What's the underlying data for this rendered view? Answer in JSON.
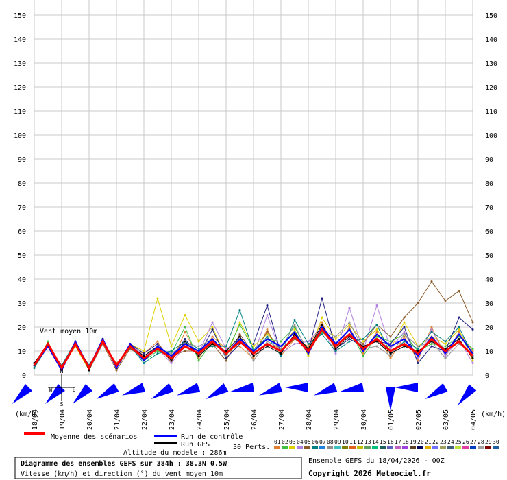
{
  "chart_data": {
    "type": "line",
    "label": "Vent moyen 10m",
    "unit_left": "(km/h)",
    "unit_right": "(km/h)",
    "ylim": [
      0,
      150
    ],
    "yticks": [
      0,
      10,
      20,
      30,
      40,
      50,
      60,
      70,
      80,
      90,
      100,
      110,
      120,
      130,
      140,
      150
    ],
    "xlim": [
      0,
      384
    ],
    "x": [
      0,
      12,
      24,
      36,
      48,
      60,
      72,
      84,
      96,
      108,
      120,
      132,
      144,
      156,
      168,
      180,
      192,
      204,
      216,
      228,
      240,
      252,
      264,
      276,
      288,
      300,
      312,
      324,
      336,
      348,
      360,
      372,
      384
    ],
    "dates": {
      "x": [
        0,
        24,
        48,
        72,
        96,
        120,
        144,
        168,
        192,
        216,
        240,
        264,
        288,
        312,
        336,
        360,
        384
      ],
      "labels": [
        "18/04",
        "19/04",
        "20/04",
        "21/04",
        "22/04",
        "23/04",
        "24/04",
        "25/04",
        "26/04",
        "27/04",
        "28/04",
        "29/04",
        "30/04",
        "01/05",
        "02/05",
        "03/05",
        "04/05"
      ]
    },
    "perturbations": [
      {
        "name": "01",
        "color": "#e08030",
        "values": [
          5,
          12,
          4,
          13,
          4,
          13,
          5,
          11,
          9,
          14,
          5,
          18,
          7,
          16,
          11,
          12,
          7,
          19,
          8,
          15,
          12,
          22,
          10,
          20,
          9,
          18,
          7,
          16,
          6,
          20,
          8,
          18,
          10
        ]
      },
      {
        "name": "03",
        "color": "#e0d000",
        "values": [
          4,
          13,
          3,
          12,
          2,
          13,
          4,
          13,
          10,
          32,
          12,
          25,
          14,
          20,
          7,
          22,
          12,
          17,
          11,
          19,
          8,
          24,
          15,
          21,
          14,
          19,
          11,
          22,
          12,
          16,
          13,
          19,
          6
        ]
      },
      {
        "name": "02",
        "color": "#40c040",
        "values": [
          3,
          14,
          2,
          13,
          4,
          14,
          3,
          12,
          6,
          10,
          9,
          20,
          6,
          14,
          9,
          21,
          11,
          15,
          14,
          20,
          10,
          18,
          13,
          19,
          8,
          16,
          14,
          17,
          10,
          13,
          12,
          16,
          11
        ]
      },
      {
        "name": "05",
        "color": "#8b5a2b",
        "values": [
          5,
          12,
          3,
          14,
          3,
          13,
          2,
          11,
          7,
          12,
          8,
          10,
          10,
          13,
          6,
          17,
          9,
          18,
          10,
          15,
          11,
          20,
          12,
          17,
          13,
          21,
          16,
          24,
          30,
          39,
          31,
          35,
          22
        ]
      },
      {
        "name": "04",
        "color": "#b080e0",
        "values": [
          4,
          13,
          2,
          13,
          3,
          14,
          4,
          13,
          8,
          11,
          5,
          12,
          9,
          22,
          11,
          14,
          8,
          25,
          9,
          13,
          14,
          20,
          9,
          28,
          10,
          29,
          11,
          18,
          7,
          19,
          8,
          15,
          5
        ]
      },
      {
        "name": "06",
        "color": "#008080",
        "values": [
          3,
          12,
          4,
          14,
          3,
          15,
          3,
          12,
          5,
          9,
          10,
          14,
          11,
          12,
          12,
          27,
          10,
          16,
          8,
          23,
          13,
          17,
          10,
          14,
          15,
          21,
          9,
          14,
          11,
          18,
          14,
          20,
          8
        ]
      },
      {
        "name": "07",
        "color": "#202080",
        "values": [
          4,
          13,
          3,
          13,
          4,
          14,
          3,
          13,
          9,
          13,
          7,
          15,
          8,
          19,
          7,
          13,
          13,
          29,
          9,
          17,
          10,
          32,
          11,
          15,
          12,
          14,
          13,
          20,
          5,
          12,
          10,
          24,
          19
        ]
      },
      {
        "name": "08",
        "color": "#909090",
        "values": [
          5,
          13,
          3,
          14,
          2,
          13,
          4,
          12,
          7,
          11,
          9,
          13,
          12,
          15,
          8,
          16,
          6,
          14,
          11,
          21,
          9,
          19,
          16,
          22,
          11,
          12,
          8,
          17,
          12,
          14,
          7,
          13,
          9
        ]
      }
    ],
    "control": {
      "name": "Run de contrôle",
      "color": "#0000ff",
      "values": [
        4,
        12,
        2,
        14,
        3,
        15,
        3,
        13,
        6,
        12,
        8,
        13,
        10,
        15,
        9,
        15,
        10,
        15,
        12,
        18,
        9,
        20,
        13,
        19,
        10,
        17,
        12,
        15,
        8,
        16,
        9,
        17,
        9
      ]
    },
    "gfs": {
      "name": "Run GFS",
      "color": "#000000",
      "values": [
        5,
        13,
        3,
        14,
        2,
        15,
        3,
        12,
        8,
        12,
        6,
        14,
        8,
        13,
        10,
        16,
        8,
        12,
        9,
        17,
        11,
        21,
        11,
        16,
        12,
        14,
        9,
        12,
        10,
        14,
        11,
        15,
        7
      ]
    },
    "mean": {
      "name": "Moyenne des scénarios",
      "color": "#ff0000",
      "values": [
        4,
        13,
        3,
        13,
        3,
        14,
        4,
        12,
        7,
        11,
        7,
        12,
        9,
        14,
        9,
        14,
        9,
        13,
        10,
        16,
        10,
        19,
        12,
        17,
        11,
        15,
        10,
        13,
        9,
        15,
        10,
        14,
        8
      ]
    },
    "wind_directions": [
      45,
      45,
      45,
      60,
      70,
      60,
      70,
      60,
      80,
      70,
      90,
      70,
      80,
      0,
      90,
      60,
      40
    ],
    "compass": [
      "N",
      "W",
      "E",
      "S"
    ],
    "perts_label": "30 Perts.",
    "pert_legend": [
      {
        "label": "01",
        "color": "#e08030"
      },
      {
        "label": "02",
        "color": "#40c040"
      },
      {
        "label": "03",
        "color": "#e0d000"
      },
      {
        "label": "04",
        "color": "#b080e0"
      },
      {
        "label": "05",
        "color": "#8b5a2b"
      },
      {
        "label": "06",
        "color": "#008080"
      },
      {
        "label": "07",
        "color": "#2080e0"
      },
      {
        "label": "08",
        "color": "#909090"
      },
      {
        "label": "09",
        "color": "#40c0c0"
      },
      {
        "label": "10",
        "color": "#808000"
      },
      {
        "label": "11",
        "color": "#e06020"
      },
      {
        "label": "12",
        "color": "#c0c000"
      },
      {
        "label": "13",
        "color": "#60a060"
      },
      {
        "label": "14",
        "color": "#00c080"
      },
      {
        "label": "15",
        "color": "#206060"
      },
      {
        "label": "16",
        "color": "#6060c0"
      },
      {
        "label": "17",
        "color": "#c060c0"
      },
      {
        "label": "18",
        "color": "#a040e0"
      },
      {
        "label": "19",
        "color": "#604020"
      },
      {
        "label": "20",
        "color": "#000060"
      },
      {
        "label": "21",
        "color": "#e0b000"
      },
      {
        "label": "22",
        "color": "#7070ff"
      },
      {
        "label": "23",
        "color": "#a0a060"
      },
      {
        "label": "24",
        "color": "#406080"
      },
      {
        "label": "25",
        "color": "#c0e040"
      },
      {
        "label": "26",
        "color": "#e040a0"
      },
      {
        "label": "27",
        "color": "#0040c0"
      },
      {
        "label": "28",
        "color": "#a0a0a0"
      },
      {
        "label": "29",
        "color": "#800000"
      },
      {
        "label": "30",
        "color": "#2060a0"
      }
    ],
    "altitude": "Altitude du modele : 286m",
    "run_info": "Ensemble GEFS du 18/04/2026 - 00Z",
    "title": "Diagramme des ensembles GEFS sur 384h : 38.3N 0.5W",
    "subtitle": "Vitesse (km/h) et direction (°) du vent moyen 10m",
    "copyright": "Copyright 2026 Meteociel.fr"
  }
}
